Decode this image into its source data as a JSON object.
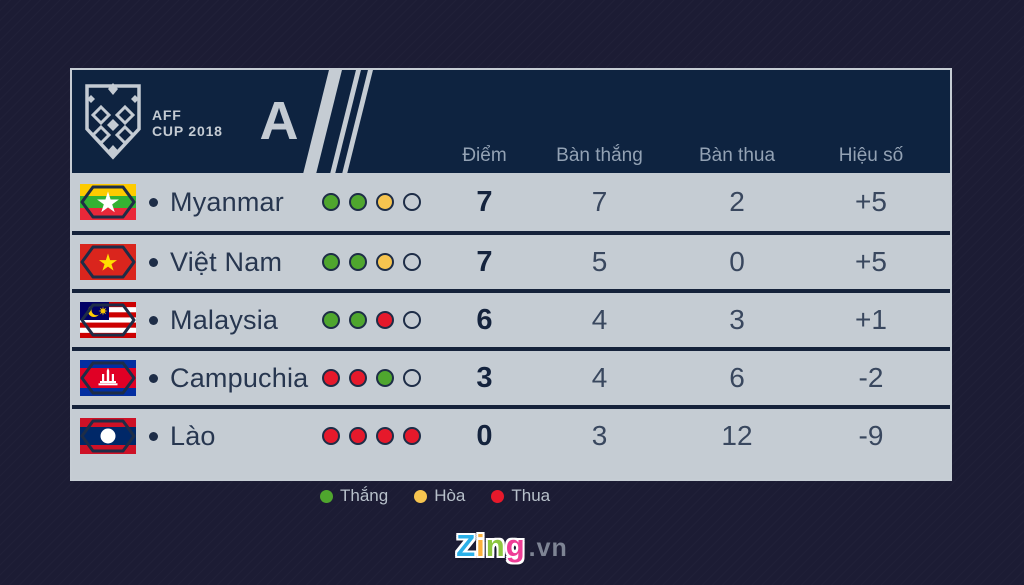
{
  "header": {
    "logo_line1": "AFF",
    "logo_line2": "CUP 2018",
    "group_label": "A",
    "columns": [
      "Điểm",
      "Bàn thắng",
      "Bàn thua",
      "Hiệu số"
    ]
  },
  "table": {
    "rows": [
      {
        "team": "Myanmar",
        "flag": "myanmar",
        "form": [
          "win",
          "win",
          "draw",
          "none"
        ],
        "points": "7",
        "goals_for": "7",
        "goals_against": "2",
        "goal_diff": "+5"
      },
      {
        "team": "Việt Nam",
        "flag": "vietnam",
        "form": [
          "win",
          "win",
          "draw",
          "none"
        ],
        "points": "7",
        "goals_for": "5",
        "goals_against": "0",
        "goal_diff": "+5"
      },
      {
        "team": "Malaysia",
        "flag": "malaysia",
        "form": [
          "win",
          "win",
          "loss",
          "none"
        ],
        "points": "6",
        "goals_for": "4",
        "goals_against": "3",
        "goal_diff": "+1"
      },
      {
        "team": "Campuchia",
        "flag": "cambodia",
        "form": [
          "loss",
          "loss",
          "win",
          "none"
        ],
        "points": "3",
        "goals_for": "4",
        "goals_against": "6",
        "goal_diff": "-2"
      },
      {
        "team": "Lào",
        "flag": "laos",
        "form": [
          "loss",
          "loss",
          "loss",
          "loss"
        ],
        "points": "0",
        "goals_for": "3",
        "goals_against": "12",
        "goal_diff": "-9"
      }
    ]
  },
  "legend": [
    {
      "key": "win",
      "label": "Thắng"
    },
    {
      "key": "draw",
      "label": "Hòa"
    },
    {
      "key": "loss",
      "label": "Thua"
    }
  ],
  "footer": {
    "logo_letters": [
      {
        "ch": "Z",
        "color": "#2bb0e8"
      },
      {
        "ch": "i",
        "color": "#fbb03b"
      },
      {
        "ch": "n",
        "color": "#8dc63f"
      },
      {
        "ch": "g",
        "color": "#ee3d96"
      }
    ],
    "suffix": ".vn"
  },
  "colors": {
    "form": {
      "win": "#4fa62e",
      "draw": "#f6c44f",
      "loss": "#e6192b",
      "none": "transparent"
    },
    "header_bg": "#0e2340",
    "row_bg": "#c5ccd3",
    "page_bg": "#1c1c34"
  }
}
